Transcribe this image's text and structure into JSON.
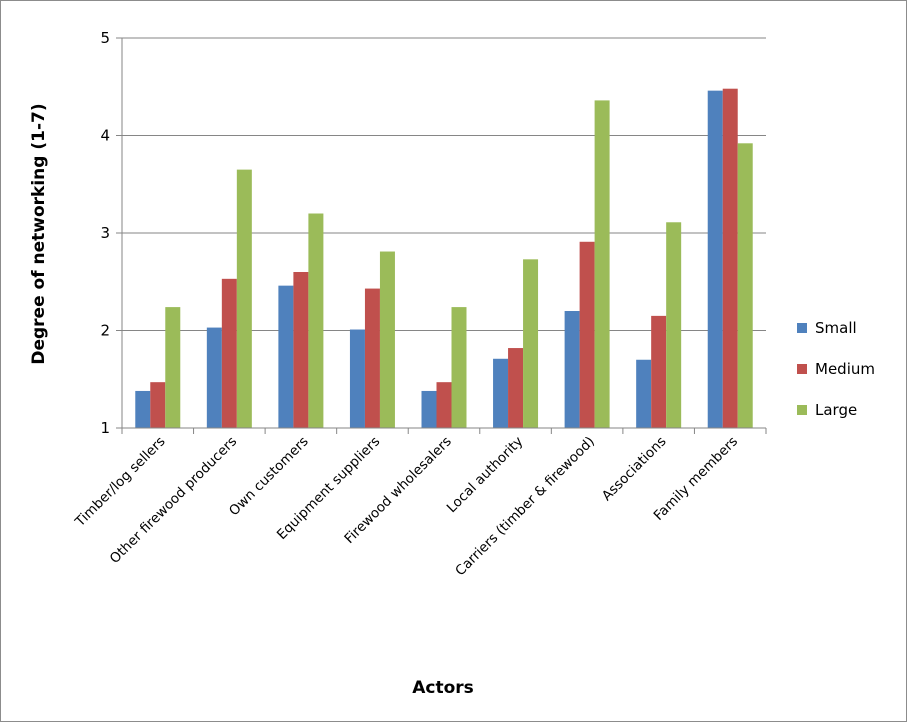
{
  "chart_data": {
    "type": "bar",
    "title": "",
    "xlabel": "Actors",
    "ylabel": "Degree of networking (1-7)",
    "ylim": [
      1,
      5
    ],
    "yticks": [
      1,
      2,
      3,
      4,
      5
    ],
    "grid": true,
    "legend_position": "right",
    "categories": [
      "Timber/log sellers",
      "Other firewood producers",
      "Own customers",
      "Equipment suppliers",
      "Firewood wholesalers",
      "Local authority",
      "Carriers (timber & firewood)",
      "Associations",
      "Family members"
    ],
    "series": [
      {
        "name": "Small",
        "color": "#4f81bd",
        "values": [
          1.38,
          2.03,
          2.46,
          2.01,
          1.38,
          1.71,
          2.2,
          1.7,
          4.46
        ]
      },
      {
        "name": "Medium",
        "color": "#c0504d",
        "values": [
          1.47,
          2.53,
          2.6,
          2.43,
          1.47,
          1.82,
          2.91,
          2.15,
          4.48
        ]
      },
      {
        "name": "Large",
        "color": "#9bbb59",
        "values": [
          2.24,
          3.65,
          3.2,
          2.81,
          2.24,
          2.73,
          4.36,
          3.11,
          3.92
        ]
      }
    ]
  }
}
